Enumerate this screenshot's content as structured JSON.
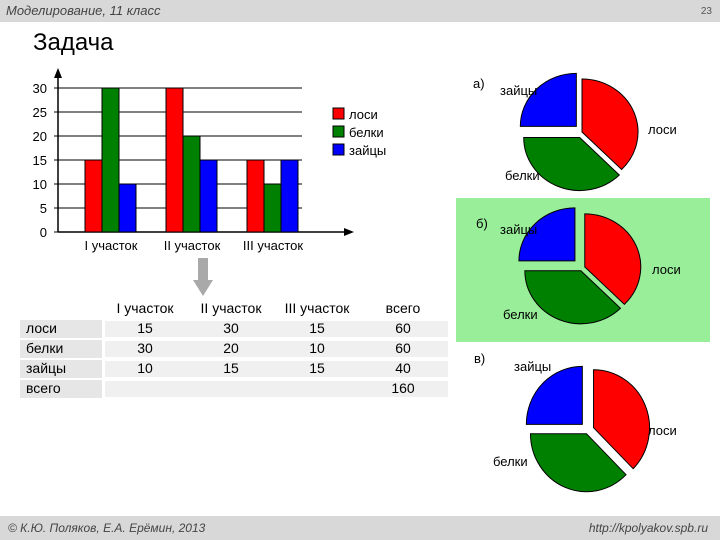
{
  "header": {
    "course": "Моделирование, 11 класс",
    "page": "23"
  },
  "title": "Задача",
  "footer": {
    "authors": "© К.Ю. Поляков, Е.А. Ерёмин, 2013",
    "url": "http://kpolyakov.spb.ru"
  },
  "colors": {
    "лоси": "#ff0000",
    "белки": "#008000",
    "зайцы": "#0000ff"
  },
  "chart_data": [
    {
      "type": "bar",
      "categories": [
        "I участок",
        "II участок",
        "III участок"
      ],
      "series": [
        {
          "name": "лоси",
          "values": [
            15,
            30,
            15
          ]
        },
        {
          "name": "белки",
          "values": [
            30,
            20,
            10
          ]
        },
        {
          "name": "зайцы",
          "values": [
            10,
            15,
            15
          ]
        }
      ],
      "yticks": [
        "0",
        "5",
        "10",
        "15",
        "20",
        "25",
        "30"
      ],
      "ylim": [
        0,
        30
      ],
      "grid": true,
      "legend": "right"
    },
    {
      "type": "pie",
      "label": "а)",
      "slices": [
        {
          "name": "лоси",
          "value": 60
        },
        {
          "name": "белки",
          "value": 60
        },
        {
          "name": "зайцы",
          "value": 40
        }
      ]
    },
    {
      "type": "pie",
      "label": "б)",
      "slices": [
        {
          "name": "лоси",
          "value": 60
        },
        {
          "name": "белки",
          "value": 60
        },
        {
          "name": "зайцы",
          "value": 40
        }
      ]
    },
    {
      "type": "pie",
      "label": "в)",
      "slices": [
        {
          "name": "лоси",
          "value": 60
        },
        {
          "name": "белки",
          "value": 60
        },
        {
          "name": "зайцы",
          "value": 40
        }
      ]
    }
  ],
  "table": {
    "columns": [
      "I участок",
      "II участок",
      "III участок",
      "всего"
    ],
    "rows": [
      {
        "name": "лоси",
        "values": [
          "15",
          "30",
          "15",
          "60"
        ]
      },
      {
        "name": "белки",
        "values": [
          "30",
          "20",
          "10",
          "60"
        ]
      },
      {
        "name": "зайцы",
        "values": [
          "10",
          "15",
          "15",
          "40"
        ]
      },
      {
        "name": "всего",
        "values": [
          "",
          "",
          "",
          "160"
        ]
      }
    ]
  }
}
